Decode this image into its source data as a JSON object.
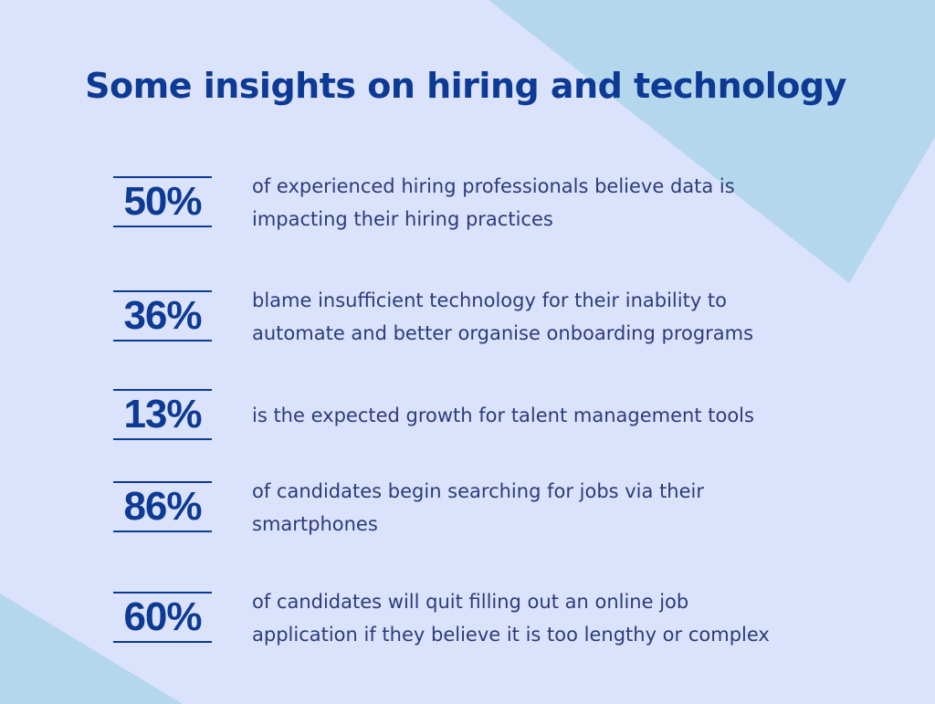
{
  "title": "Some insights on hiring and technology",
  "items": [
    {
      "stat": "50%",
      "lines": [
        "of experienced hiring professionals believe data is",
        "impacting their hiring practices"
      ]
    },
    {
      "stat": "36%",
      "lines": [
        "blame insufficient technology for their inability to",
        "automate and better organise onboarding programs"
      ]
    },
    {
      "stat": "13%",
      "lines": [
        "is the expected growth for talent management tools"
      ]
    },
    {
      "stat": "86%",
      "lines": [
        "of candidates begin searching for jobs via their",
        "smartphones"
      ]
    },
    {
      "stat": "60%",
      "lines": [
        "of candidates will quit filling out an online job",
        "application if they believe it is too lengthy or complex"
      ]
    }
  ]
}
